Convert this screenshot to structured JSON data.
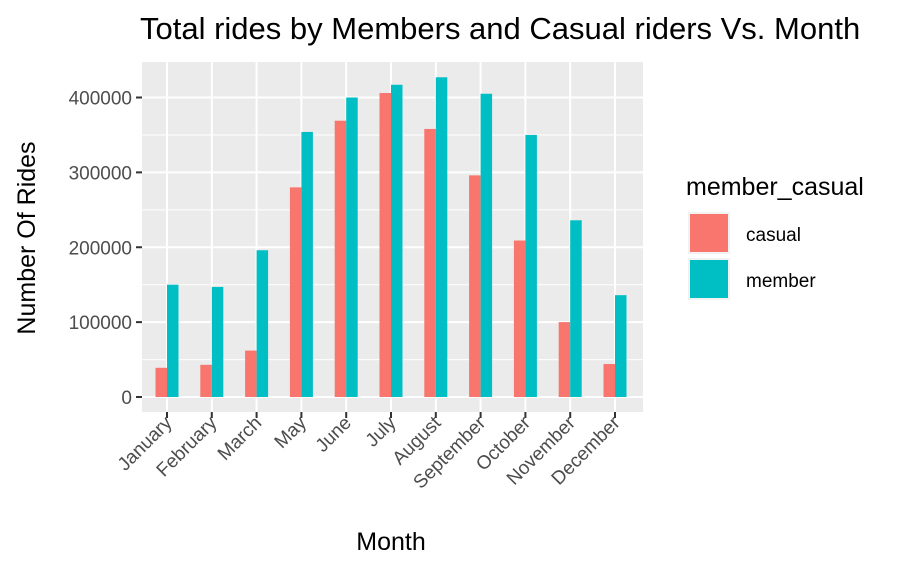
{
  "chart_data": {
    "type": "bar",
    "title": "Total rides by Members and Casual riders Vs. Month",
    "xlabel": "Month",
    "ylabel": "Number Of Rides",
    "categories": [
      "January",
      "February",
      "March",
      "May",
      "June",
      "July",
      "August",
      "September",
      "October",
      "November",
      "December"
    ],
    "series": [
      {
        "name": "casual",
        "color": "#F8766D",
        "values": [
          39000,
          43000,
          62000,
          280000,
          369000,
          406000,
          358000,
          296000,
          209000,
          100000,
          44000
        ]
      },
      {
        "name": "member",
        "color": "#00BFC4",
        "values": [
          150000,
          147000,
          196000,
          354000,
          400000,
          417000,
          427000,
          405000,
          350000,
          236000,
          136000
        ]
      }
    ],
    "ylim": [
      0,
      450000
    ],
    "yticks": [
      0,
      100000,
      200000,
      300000,
      400000
    ],
    "ytick_labels": [
      "0",
      "100000",
      "200000",
      "300000",
      "400000"
    ],
    "grid": true,
    "legend": {
      "title": "member_casual",
      "position": "right"
    },
    "panel_background": "#EBEBEB",
    "grid_color": "#FFFFFF"
  }
}
